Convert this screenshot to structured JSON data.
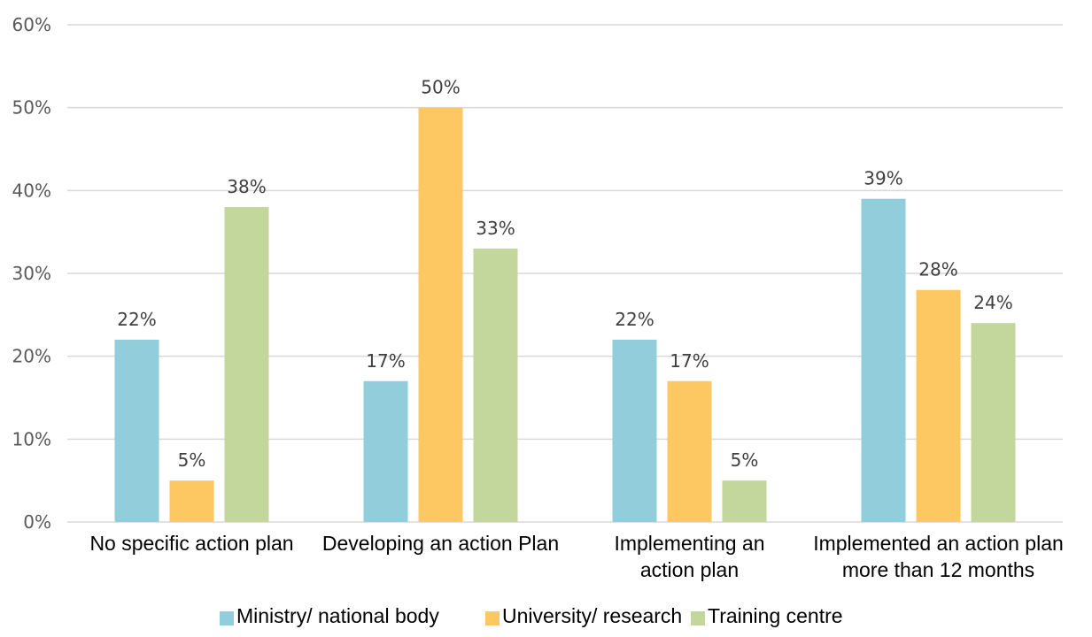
{
  "chart_data": {
    "type": "bar",
    "title": "",
    "xlabel": "",
    "ylabel": "",
    "ylim": [
      0,
      60
    ],
    "yticks": [
      0,
      10,
      20,
      30,
      40,
      50,
      60
    ],
    "y_unit": "%",
    "grid": true,
    "legend_placement": "bottom",
    "categories": [
      [
        "No specific action plan"
      ],
      [
        "Developing an action Plan"
      ],
      [
        "Implementing an",
        "action plan"
      ],
      [
        "Implemented an action plan",
        "more than 12 months"
      ]
    ],
    "series": [
      {
        "name": "Ministry/ national body",
        "color": "#92cddc",
        "values": [
          22,
          17,
          22,
          39
        ]
      },
      {
        "name": "University/ research",
        "color": "#fdc862",
        "values": [
          5,
          50,
          17,
          28
        ]
      },
      {
        "name": "Training centre",
        "color": "#c3d69b",
        "values": [
          38,
          33,
          5,
          24
        ]
      }
    ]
  },
  "colors": {
    "grid": "#d9d9d9",
    "axis": "#d9d9d9"
  }
}
